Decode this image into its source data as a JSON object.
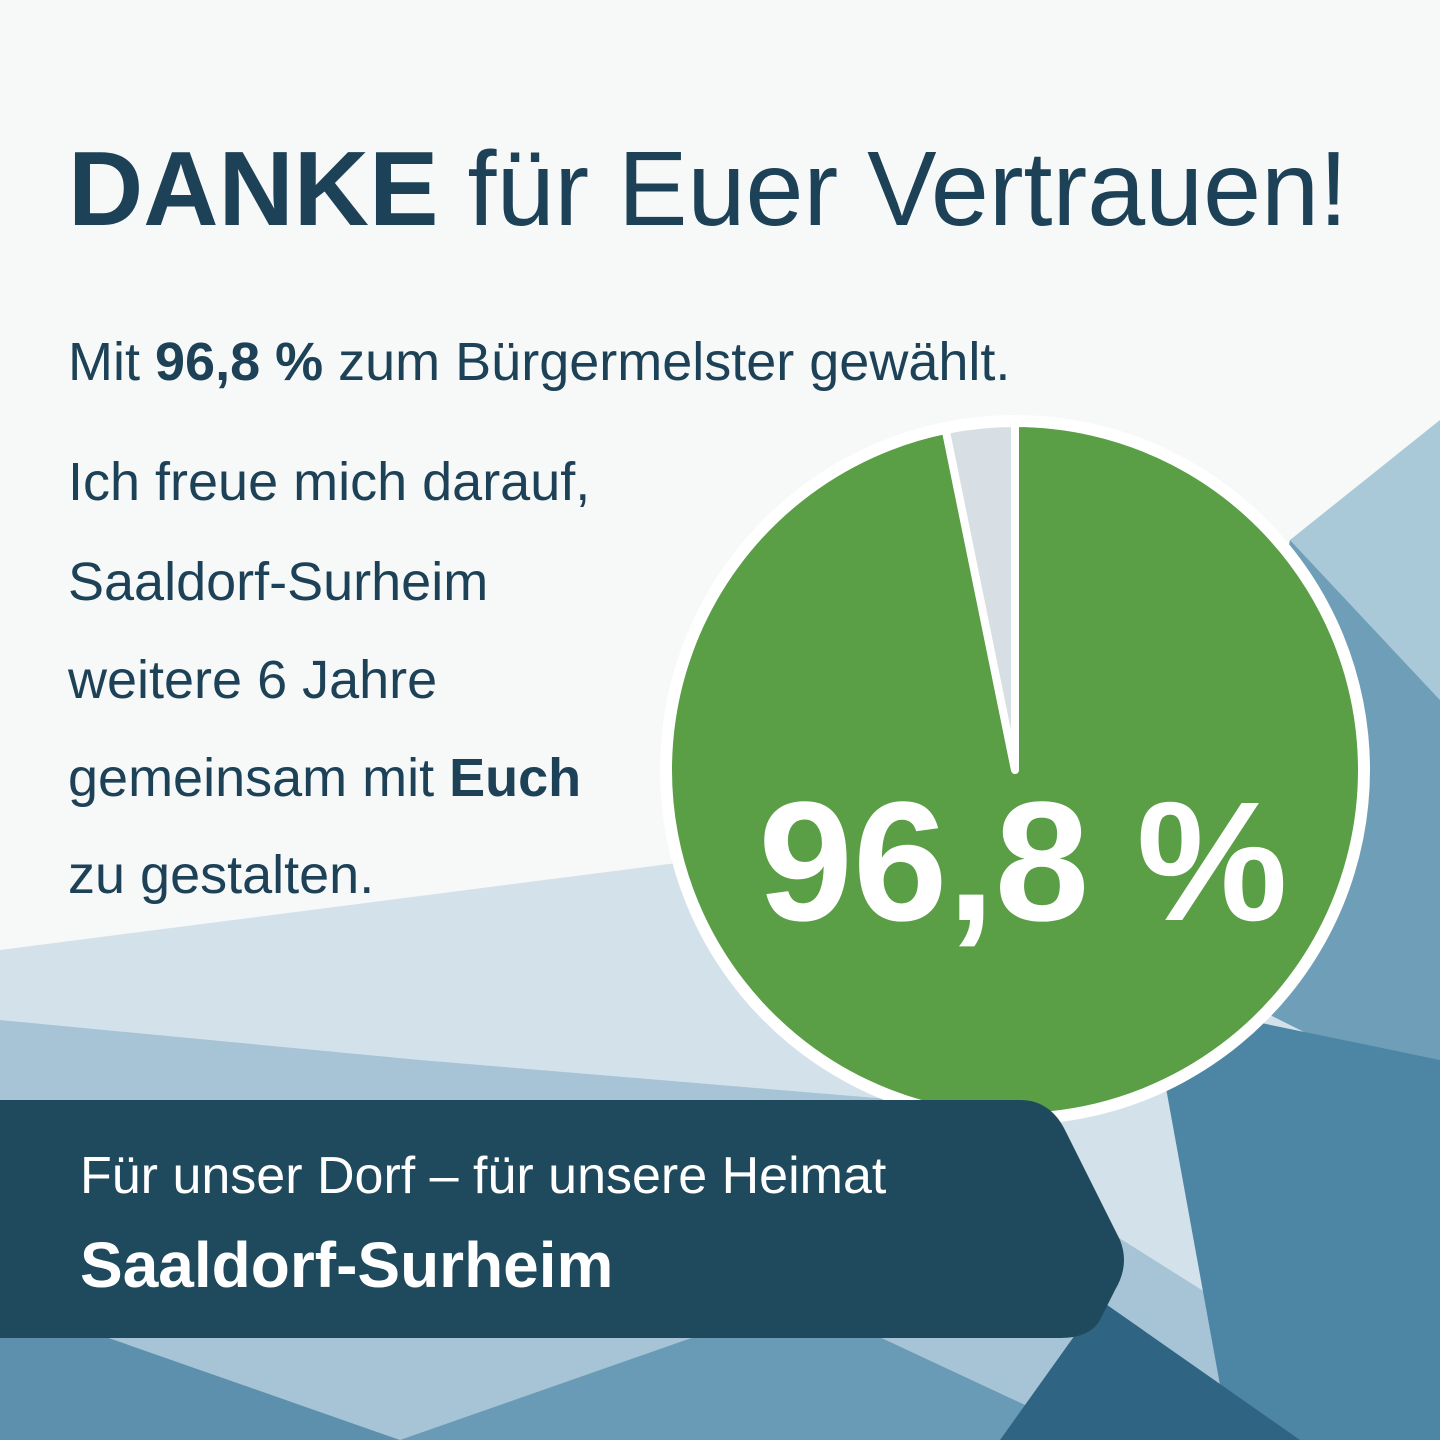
{
  "headline": {
    "bold": "DANKE",
    "rest": "für Euer Vertrauen!"
  },
  "subline": {
    "start": "Mit",
    "bold": "96,8 %",
    "end": "zum Bürgermelster gewählt."
  },
  "message": {
    "line1": "Ich freue mich darauf,",
    "line2": "Saaldorf-Surheim",
    "line3": "weitere 6 Jahre",
    "line4": "gemeinsam mit",
    "line4_bold": "Euch",
    "line5": "zu gestalten."
  },
  "banner": {
    "slogan": "Für unser Dorf – für unsere Heimat",
    "place": "Saaldorf-Surheim"
  },
  "chart_data": {
    "type": "pie",
    "categories": [
      null,
      null
    ],
    "values": [
      96.8,
      3.2
    ],
    "value_labels": [
      "96,8 %",
      null
    ],
    "colors": [
      "#5a9e46",
      "#d8dfe4"
    ]
  }
}
